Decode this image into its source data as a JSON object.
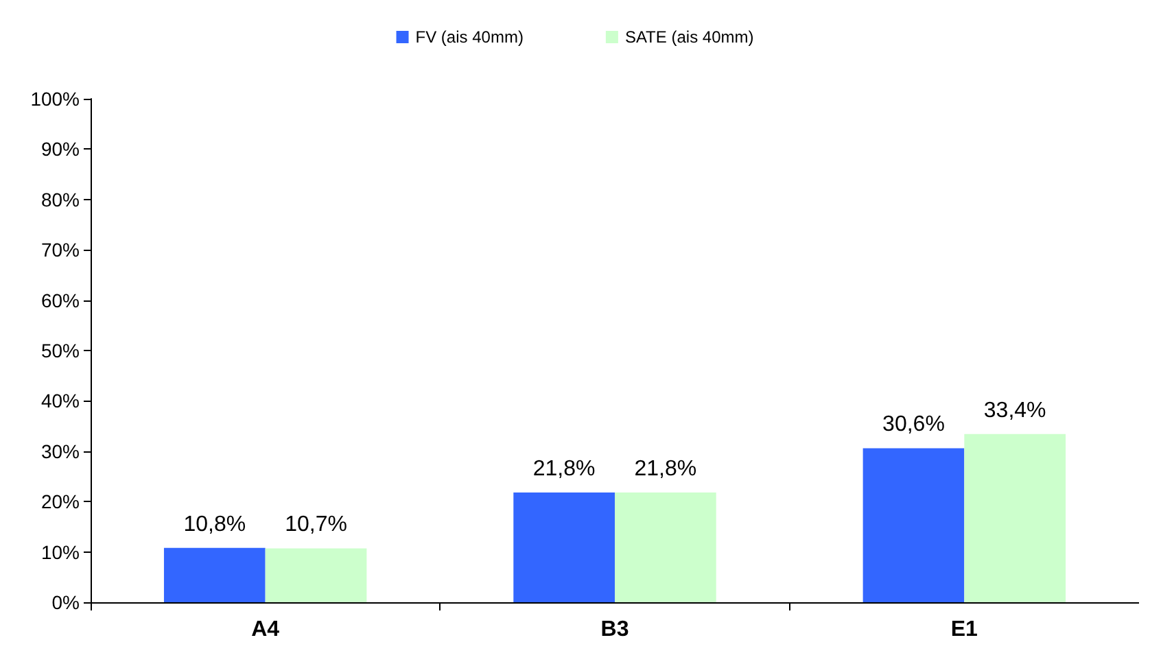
{
  "chart_data": {
    "type": "bar",
    "categories": [
      "A4",
      "B3",
      "E1"
    ],
    "series": [
      {
        "name": "FV (ais 40mm)",
        "color": "#3366ff",
        "values": [
          10.8,
          21.8,
          30.6
        ],
        "value_labels": [
          "10,8%",
          "21,8%",
          "30,6%"
        ]
      },
      {
        "name": "SATE (ais 40mm)",
        "color": "#ccffcc",
        "values": [
          10.7,
          21.8,
          33.4
        ],
        "value_labels": [
          "10,7%",
          "21,8%",
          "33,4%"
        ]
      }
    ],
    "ylim": [
      0,
      100
    ],
    "yticks": [
      {
        "value": 0,
        "label": "0%"
      },
      {
        "value": 10,
        "label": "10%"
      },
      {
        "value": 20,
        "label": "20%"
      },
      {
        "value": 30,
        "label": "30%"
      },
      {
        "value": 40,
        "label": "40%"
      },
      {
        "value": 50,
        "label": "50%"
      },
      {
        "value": 60,
        "label": "60%"
      },
      {
        "value": 70,
        "label": "70%"
      },
      {
        "value": 80,
        "label": "80%"
      },
      {
        "value": 90,
        "label": "90%"
      },
      {
        "value": 100,
        "label": "100%"
      }
    ],
    "grid": false,
    "legend": "top"
  }
}
